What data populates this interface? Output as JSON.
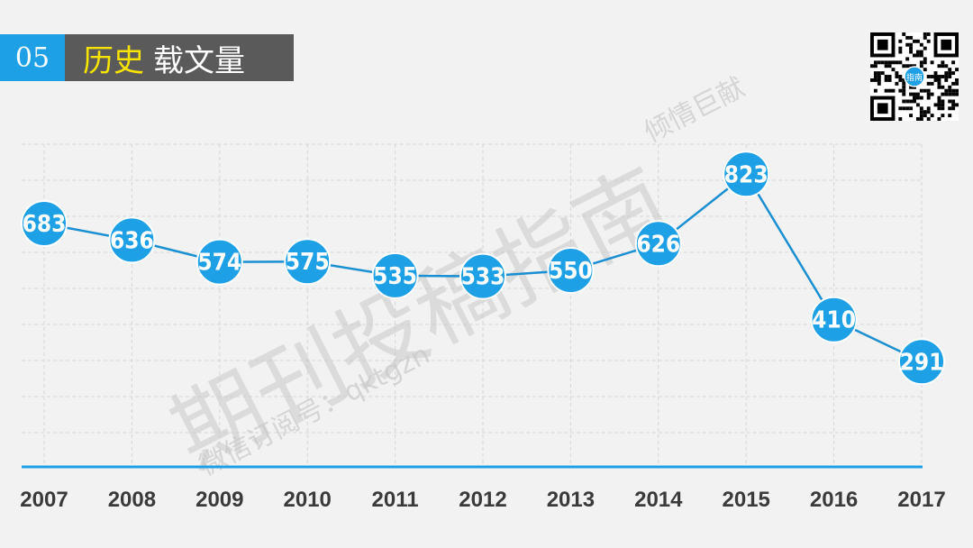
{
  "header": {
    "number": "05",
    "title_highlight": "历史",
    "title_rest": "载文量"
  },
  "watermarks": {
    "main": "期刊投稿指南",
    "sub": "微信订阅号：qktgzn",
    "corner": "倾情巨献"
  },
  "qr": {
    "icon": "qr-code-icon",
    "center_text": "指南"
  },
  "colors": {
    "background": "#f2f2f2",
    "accent": "#1ea0e6",
    "title_box": "#5a5a5a",
    "title_highlight": "#f7e400",
    "line": "#1a8fd1",
    "axis": "#1ea0e6",
    "grid": "#d6d6d6",
    "year_label": "#3a3a3a"
  },
  "chart_data": {
    "type": "line",
    "title": "历史载文量",
    "x": [
      "2007",
      "2008",
      "2009",
      "2010",
      "2011",
      "2012",
      "2013",
      "2014",
      "2015",
      "2016",
      "2017"
    ],
    "series": [
      {
        "values": [
          683,
          636,
          574,
          575,
          535,
          533,
          550,
          626,
          823,
          410,
          291
        ]
      }
    ],
    "xlabel": "",
    "ylabel": "",
    "grid": true,
    "legend": "none",
    "data_labels": true
  }
}
